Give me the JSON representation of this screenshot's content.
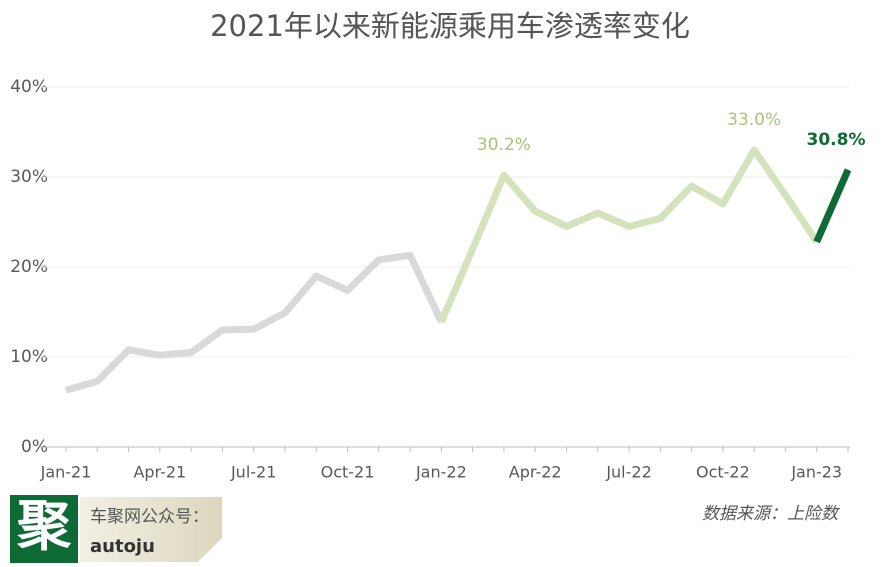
{
  "chart_data": {
    "type": "line",
    "title": "2021年以来新能源乘用车渗透率变化",
    "categories": [
      "Jan-21",
      null,
      null,
      "Apr-21",
      null,
      null,
      "Jul-21",
      null,
      null,
      "Oct-21",
      null,
      null,
      "Jan-22",
      null,
      null,
      "Apr-22",
      null,
      null,
      "Jul-22",
      null,
      null,
      "Oct-22",
      null,
      null,
      "Jan-23",
      null
    ],
    "series": [
      {
        "color": "#d9d9d9",
        "values": [
          6.3,
          7.3,
          10.8,
          10.2,
          10.5,
          13.0,
          13.1,
          14.9,
          19.0,
          17.4,
          20.8,
          21.3,
          13.9,
          null,
          null,
          null,
          null,
          null,
          null,
          null,
          null,
          null,
          null,
          null,
          null,
          null
        ]
      },
      {
        "color": "#d5e3bd",
        "values": [
          null,
          null,
          null,
          null,
          null,
          null,
          null,
          null,
          null,
          null,
          null,
          null,
          13.9,
          22.0,
          30.2,
          26.2,
          24.5,
          26.0,
          24.5,
          25.4,
          29.0,
          27.0,
          33.0,
          28.0,
          22.8,
          null
        ],
        "value_labels": [
          null,
          null,
          null,
          null,
          null,
          null,
          null,
          null,
          null,
          null,
          null,
          null,
          null,
          null,
          "30.2%",
          null,
          null,
          null,
          null,
          null,
          null,
          null,
          "33.0%",
          null,
          null,
          null
        ],
        "label_color": "#a9c47a"
      },
      {
        "color": "#0f6b36",
        "values": [
          null,
          null,
          null,
          null,
          null,
          null,
          null,
          null,
          null,
          null,
          null,
          null,
          null,
          null,
          null,
          null,
          null,
          null,
          null,
          null,
          null,
          null,
          null,
          null,
          22.8,
          30.8
        ],
        "value_labels": [
          null,
          null,
          null,
          null,
          null,
          null,
          null,
          null,
          null,
          null,
          null,
          null,
          null,
          null,
          null,
          null,
          null,
          null,
          null,
          null,
          null,
          null,
          null,
          null,
          null,
          "30.8%"
        ],
        "label_color": "#0f6b36"
      }
    ],
    "ylim": [
      0,
      40
    ],
    "yticks": [
      {
        "value": 0,
        "label": "0%"
      },
      {
        "value": 10,
        "label": "10%"
      },
      {
        "value": 20,
        "label": "20%"
      },
      {
        "value": 30,
        "label": "30%"
      },
      {
        "value": 40,
        "label": "40%"
      }
    ],
    "grid": true,
    "source": "数据来源：上险数"
  },
  "brand": {
    "logo": "聚",
    "account": "车聚网公众号：",
    "id": "autoju"
  }
}
